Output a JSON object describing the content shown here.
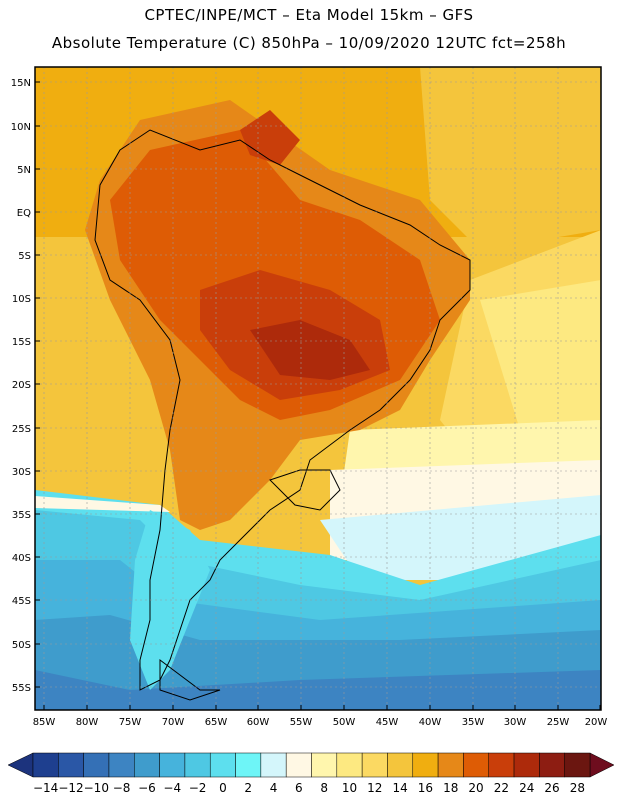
{
  "header": {
    "line1": "CPTEC/INPE/MCT –  Eta Model 15km – GFS",
    "line2": "Absolute Temperature (C) 850hPa – 10/09/2020 12UTC fct=258h"
  },
  "map": {
    "lat_labels": [
      "15N",
      "10N",
      "5N",
      "EQ",
      "5S",
      "10S",
      "15S",
      "20S",
      "25S",
      "30S",
      "35S",
      "40S",
      "45S",
      "50S",
      "55S"
    ],
    "lon_labels": [
      "85W",
      "80W",
      "75W",
      "70W",
      "65W",
      "60W",
      "55W",
      "50W",
      "45W",
      "40W",
      "35W",
      "30W",
      "25W",
      "20W"
    ]
  },
  "colorbar": {
    "labels": [
      "-14",
      "-12",
      "-10",
      "-8",
      "-6",
      "-4",
      "-2",
      "0",
      "2",
      "4",
      "6",
      "8",
      "10",
      "12",
      "14",
      "16",
      "18",
      "20",
      "22",
      "24",
      "26",
      "28"
    ],
    "colors": [
      "#1e3f8f",
      "#2a57a6",
      "#3470b6",
      "#3d84c2",
      "#3f9ccc",
      "#46b3dc",
      "#4ec8e3",
      "#5ddfee",
      "#6ef5f7",
      "#d4f6fb",
      "#fff8e4",
      "#fff6ad",
      "#fde981",
      "#fbd962",
      "#f4c53c",
      "#f0ae10",
      "#e68818",
      "#de5c05",
      "#c93e0a",
      "#ad2a0b",
      "#8d1d12",
      "#6b1610"
    ],
    "low_color": "#1c337d",
    "high_color": "#6e0d1e"
  }
}
